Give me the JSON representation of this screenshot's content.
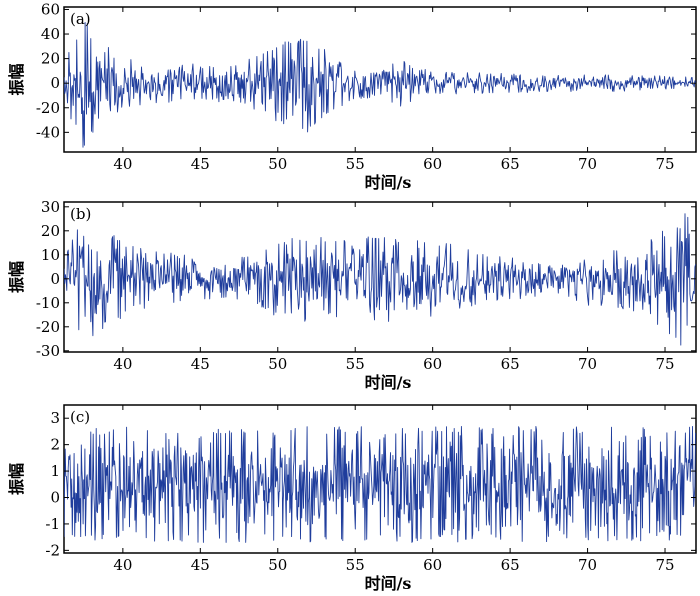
{
  "chart_data": [
    {
      "type": "line",
      "panel_label": "(a)",
      "xlabel": "时间/s",
      "ylabel": "振幅",
      "xlim": [
        36.2,
        77
      ],
      "ylim": [
        -56,
        62
      ],
      "xticks": [
        40,
        45,
        50,
        55,
        60,
        65,
        70,
        75
      ],
      "yticks": [
        -40,
        -20,
        0,
        20,
        40,
        60
      ],
      "grid": false,
      "series": [
        {
          "color": "#1f3d9c",
          "samples_per_second": 22,
          "envelope": [
            [
              36.2,
              15
            ],
            [
              37.0,
              40
            ],
            [
              37.5,
              55
            ],
            [
              38.5,
              35
            ],
            [
              40,
              22
            ],
            [
              42,
              18
            ],
            [
              44,
              16
            ],
            [
              46,
              15
            ],
            [
              47.5,
              16
            ],
            [
              49,
              26
            ],
            [
              50.5,
              34
            ],
            [
              52,
              40
            ],
            [
              53.5,
              24
            ],
            [
              55,
              12
            ],
            [
              57,
              14
            ],
            [
              58,
              20
            ],
            [
              59,
              12
            ],
            [
              61,
              9
            ],
            [
              65,
              8
            ],
            [
              70,
              7
            ],
            [
              75,
              6
            ],
            [
              77,
              5
            ]
          ],
          "y": []
        }
      ]
    },
    {
      "type": "line",
      "panel_label": "(b)",
      "xlabel": "时间/s",
      "ylabel": "振幅",
      "xlim": [
        36.2,
        77
      ],
      "ylim": [
        -30.5,
        32
      ],
      "xticks": [
        40,
        45,
        50,
        55,
        60,
        65,
        70,
        75
      ],
      "yticks": [
        -30,
        -20,
        -10,
        0,
        10,
        20,
        30
      ],
      "grid": false,
      "series": [
        {
          "color": "#1f3d9c",
          "samples_per_second": 22,
          "envelope": [
            [
              36.2,
              8
            ],
            [
              37,
              22
            ],
            [
              37.8,
              28
            ],
            [
              38.6,
              22
            ],
            [
              40,
              16
            ],
            [
              42,
              12
            ],
            [
              44,
              10
            ],
            [
              46,
              8
            ],
            [
              48,
              10
            ],
            [
              50,
              16
            ],
            [
              52,
              18
            ],
            [
              54,
              16
            ],
            [
              56,
              20
            ],
            [
              58,
              18
            ],
            [
              60,
              16
            ],
            [
              62,
              14
            ],
            [
              64,
              10
            ],
            [
              66,
              8
            ],
            [
              68,
              9
            ],
            [
              70,
              11
            ],
            [
              72,
              12
            ],
            [
              74,
              16
            ],
            [
              75.5,
              25
            ],
            [
              76.3,
              30
            ],
            [
              77,
              20
            ]
          ],
          "y": []
        }
      ]
    },
    {
      "type": "line",
      "panel_label": "(c)",
      "xlabel": "时间/s",
      "ylabel": "振幅",
      "xlim": [
        36.2,
        77
      ],
      "ylim": [
        -2.1,
        3.5
      ],
      "xticks": [
        40,
        45,
        50,
        55,
        60,
        65,
        70,
        75
      ],
      "yticks": [
        -2,
        -1,
        0,
        1,
        2,
        3
      ],
      "grid": false,
      "series": [
        {
          "color": "#1f3d9c",
          "samples_per_second": 26,
          "center": 0.5,
          "envelope": [
            [
              36.2,
              2.2
            ],
            [
              77,
              2.2
            ]
          ],
          "y": []
        }
      ]
    }
  ]
}
